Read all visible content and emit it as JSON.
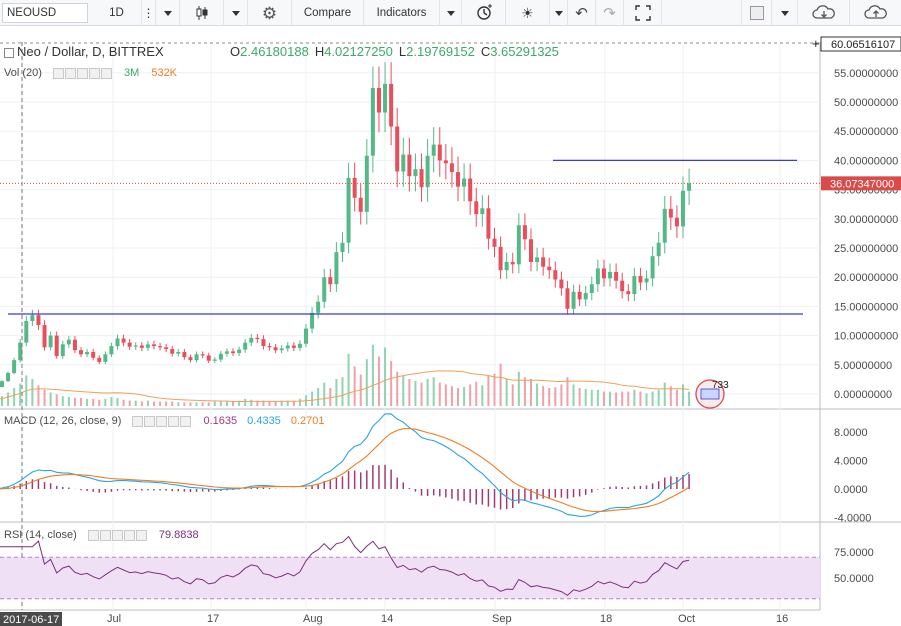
{
  "toolbar": {
    "symbol": "NEOUSD",
    "interval": "1D",
    "compare_label": "Compare",
    "indicators_label": "Indicators"
  },
  "main_pane": {
    "title": "Neo / Dollar, D, BITTREX",
    "ohlc": {
      "open_label": "O",
      "open": "2.46180188",
      "high_label": "H",
      "high": "4.02127250",
      "low_label": "L",
      "low": "2.19769152",
      "close_label": "C",
      "close": "3.65291325"
    },
    "top_value": "60.06516107",
    "last_price": "36.07347000",
    "volume_label": "Vol (20)",
    "volume_values": [
      "3M",
      "532K"
    ],
    "price_ticks": [
      "55.00000000",
      "50.00000000",
      "45.00000000",
      "40.00000000",
      "35.00000000",
      "30.00000000",
      "25.00000000",
      "20.00000000",
      "15.00000000",
      "10.00000000",
      "5.00000000",
      "0.00000000"
    ],
    "badge_value": "733"
  },
  "macd_pane": {
    "label": "MACD (12, 26, close, 9)",
    "values": [
      "0.1635",
      "0.4335",
      "0.2701"
    ],
    "ticks": [
      "8.0000",
      "4.0000",
      "0.0000",
      "-4.0000"
    ]
  },
  "rsi_pane": {
    "label": "RSI (14, close)",
    "value": "79.8838",
    "ticks": [
      "75.0000",
      "50.0000"
    ]
  },
  "time_axis": {
    "cursor_date": "2017-06-17",
    "labels": [
      "Jul",
      "17",
      "Aug",
      "14",
      "Sep",
      "18",
      "Oct",
      "16"
    ]
  },
  "colors": {
    "up": "#53b987",
    "down": "#eb4d5c",
    "horizontal_line": "#3b3bd6",
    "price_line": "#d94b4b",
    "volume_ma": "#f0a05a",
    "macd_line": "#2aa4e0",
    "signal_line": "#f07d22",
    "histogram": "#a13a7a",
    "rsi_line": "#7d2f7d",
    "rsi_band": "#f0e0f5"
  },
  "chart_data": {
    "type": "candlestick",
    "x": [
      "2017-06-10",
      "2017-06-11",
      "2017-06-12",
      "2017-06-13",
      "2017-06-14",
      "2017-06-15",
      "2017-06-16",
      "2017-06-17",
      "2017-06-18",
      "2017-06-19",
      "2017-06-20",
      "2017-06-21",
      "2017-06-22",
      "2017-06-23",
      "2017-06-24",
      "2017-06-25",
      "2017-06-26",
      "2017-06-27",
      "2017-06-28",
      "2017-06-29",
      "2017-06-30",
      "2017-07-01",
      "2017-07-02",
      "2017-07-03",
      "2017-07-04",
      "2017-07-05",
      "2017-07-06",
      "2017-07-07",
      "2017-07-08",
      "2017-07-09",
      "2017-07-10",
      "2017-07-11",
      "2017-07-12",
      "2017-07-13",
      "2017-07-14",
      "2017-07-15",
      "2017-07-16",
      "2017-07-17",
      "2017-07-18",
      "2017-07-19",
      "2017-07-20",
      "2017-07-21",
      "2017-07-22",
      "2017-07-23",
      "2017-07-24",
      "2017-07-25",
      "2017-07-26",
      "2017-07-27",
      "2017-07-28",
      "2017-07-29",
      "2017-07-30",
      "2017-07-31",
      "2017-08-01",
      "2017-08-02",
      "2017-08-03",
      "2017-08-04",
      "2017-08-05",
      "2017-08-06",
      "2017-08-07",
      "2017-08-08",
      "2017-08-09",
      "2017-08-10",
      "2017-08-11",
      "2017-08-12",
      "2017-08-13",
      "2017-08-14",
      "2017-08-15",
      "2017-08-16",
      "2017-08-17",
      "2017-08-18",
      "2017-08-19",
      "2017-08-20",
      "2017-08-21",
      "2017-08-22",
      "2017-08-23",
      "2017-08-24",
      "2017-08-25",
      "2017-08-26",
      "2017-08-27",
      "2017-08-28",
      "2017-08-29",
      "2017-08-30",
      "2017-08-31",
      "2017-09-01",
      "2017-09-02",
      "2017-09-03",
      "2017-09-04",
      "2017-09-05",
      "2017-09-06",
      "2017-09-07",
      "2017-09-08",
      "2017-09-09",
      "2017-09-10",
      "2017-09-11",
      "2017-09-12",
      "2017-09-13",
      "2017-09-14",
      "2017-09-15",
      "2017-09-16",
      "2017-09-17",
      "2017-09-18",
      "2017-09-19",
      "2017-09-20",
      "2017-09-21",
      "2017-09-22",
      "2017-09-23",
      "2017-09-24",
      "2017-09-25",
      "2017-09-26",
      "2017-09-27",
      "2017-09-28",
      "2017-09-29",
      "2017-09-30",
      "2017-10-01",
      "2017-10-02",
      "2017-10-03"
    ],
    "close": [
      0.8,
      1.2,
      2.2,
      3.6,
      5.8,
      8.8,
      12.5,
      13.5,
      11.8,
      8.0,
      10.0,
      6.5,
      8.5,
      9.3,
      7.5,
      6.8,
      7.2,
      6.2,
      5.5,
      6.8,
      8.2,
      9.5,
      8.8,
      8.1,
      8.3,
      7.9,
      8.5,
      8.2,
      8.0,
      7.7,
      6.9,
      7.2,
      6.3,
      5.8,
      6.8,
      6.6,
      5.7,
      5.9,
      6.9,
      7.3,
      7.0,
      7.6,
      8.8,
      9.6,
      9.4,
      8.2,
      8.0,
      7.5,
      7.8,
      8.3,
      7.9,
      8.6,
      11.2,
      13.9,
      15.8,
      20.0,
      18.8,
      24.3,
      25.9,
      37.0,
      33.6,
      31.2,
      40.8,
      52.4,
      48.2,
      53.1,
      45.8,
      38.1,
      41.0,
      37.3,
      38.5,
      35.4,
      40.8,
      42.7,
      40.0,
      39.5,
      38.0,
      35.5,
      36.9,
      33.0,
      30.8,
      31.8,
      26.6,
      25.2,
      21.2,
      22.6,
      22.2,
      28.9,
      26.5,
      22.6,
      23.4,
      21.8,
      21.2,
      19.6,
      18.1,
      14.6,
      17.5,
      16.2,
      17.3,
      18.8,
      21.5,
      19.8,
      20.9,
      19.4,
      17.6,
      17.1,
      20.2,
      19.1,
      19.8,
      23.6,
      25.9,
      31.7,
      30.2,
      28.7,
      34.8,
      36.07
    ],
    "overlays": {
      "horizontal_lines_price": [
        13.7,
        40.0
      ],
      "last_price": 36.07,
      "top_value": 60.07
    },
    "volume": [
      0.6,
      0.8,
      1.1,
      1.5,
      2.0,
      2.5,
      3.4,
      3.0,
      2.3,
      1.8,
      1.5,
      1.3,
      1.1,
      1.0,
      0.9,
      0.9,
      0.8,
      0.8,
      0.7,
      0.8,
      1.0,
      0.9,
      0.7,
      0.6,
      0.6,
      0.5,
      0.6,
      0.5,
      0.5,
      0.5,
      0.5,
      0.4,
      0.4,
      0.4,
      0.4,
      0.4,
      0.4,
      0.5,
      0.5,
      0.5,
      0.5,
      0.6,
      0.8,
      0.7,
      0.6,
      0.6,
      0.5,
      0.5,
      0.6,
      0.6,
      0.6,
      0.8,
      1.2,
      1.6,
      2.0,
      2.6,
      2.0,
      3.0,
      3.2,
      5.8,
      4.4,
      3.5,
      5.2,
      6.8,
      5.5,
      6.5,
      5.0,
      3.8,
      3.4,
      3.0,
      2.8,
      2.6,
      3.0,
      3.2,
      2.6,
      2.4,
      2.2,
      2.0,
      2.1,
      2.4,
      2.7,
      2.3,
      3.4,
      3.6,
      4.7,
      3.0,
      2.4,
      3.8,
      3.2,
      3.0,
      2.5,
      2.2,
      2.0,
      2.1,
      2.4,
      3.2,
      2.4,
      2.0,
      1.9,
      1.8,
      1.8,
      1.6,
      1.6,
      1.5,
      1.6,
      1.6,
      1.8,
      1.6,
      1.4,
      1.6,
      1.8,
      2.6,
      2.2,
      1.8,
      2.4,
      1.6
    ],
    "macd": {
      "ticks": [
        8,
        4,
        0,
        -4
      ]
    },
    "rsi": {
      "ticks": [
        75,
        50
      ]
    }
  }
}
